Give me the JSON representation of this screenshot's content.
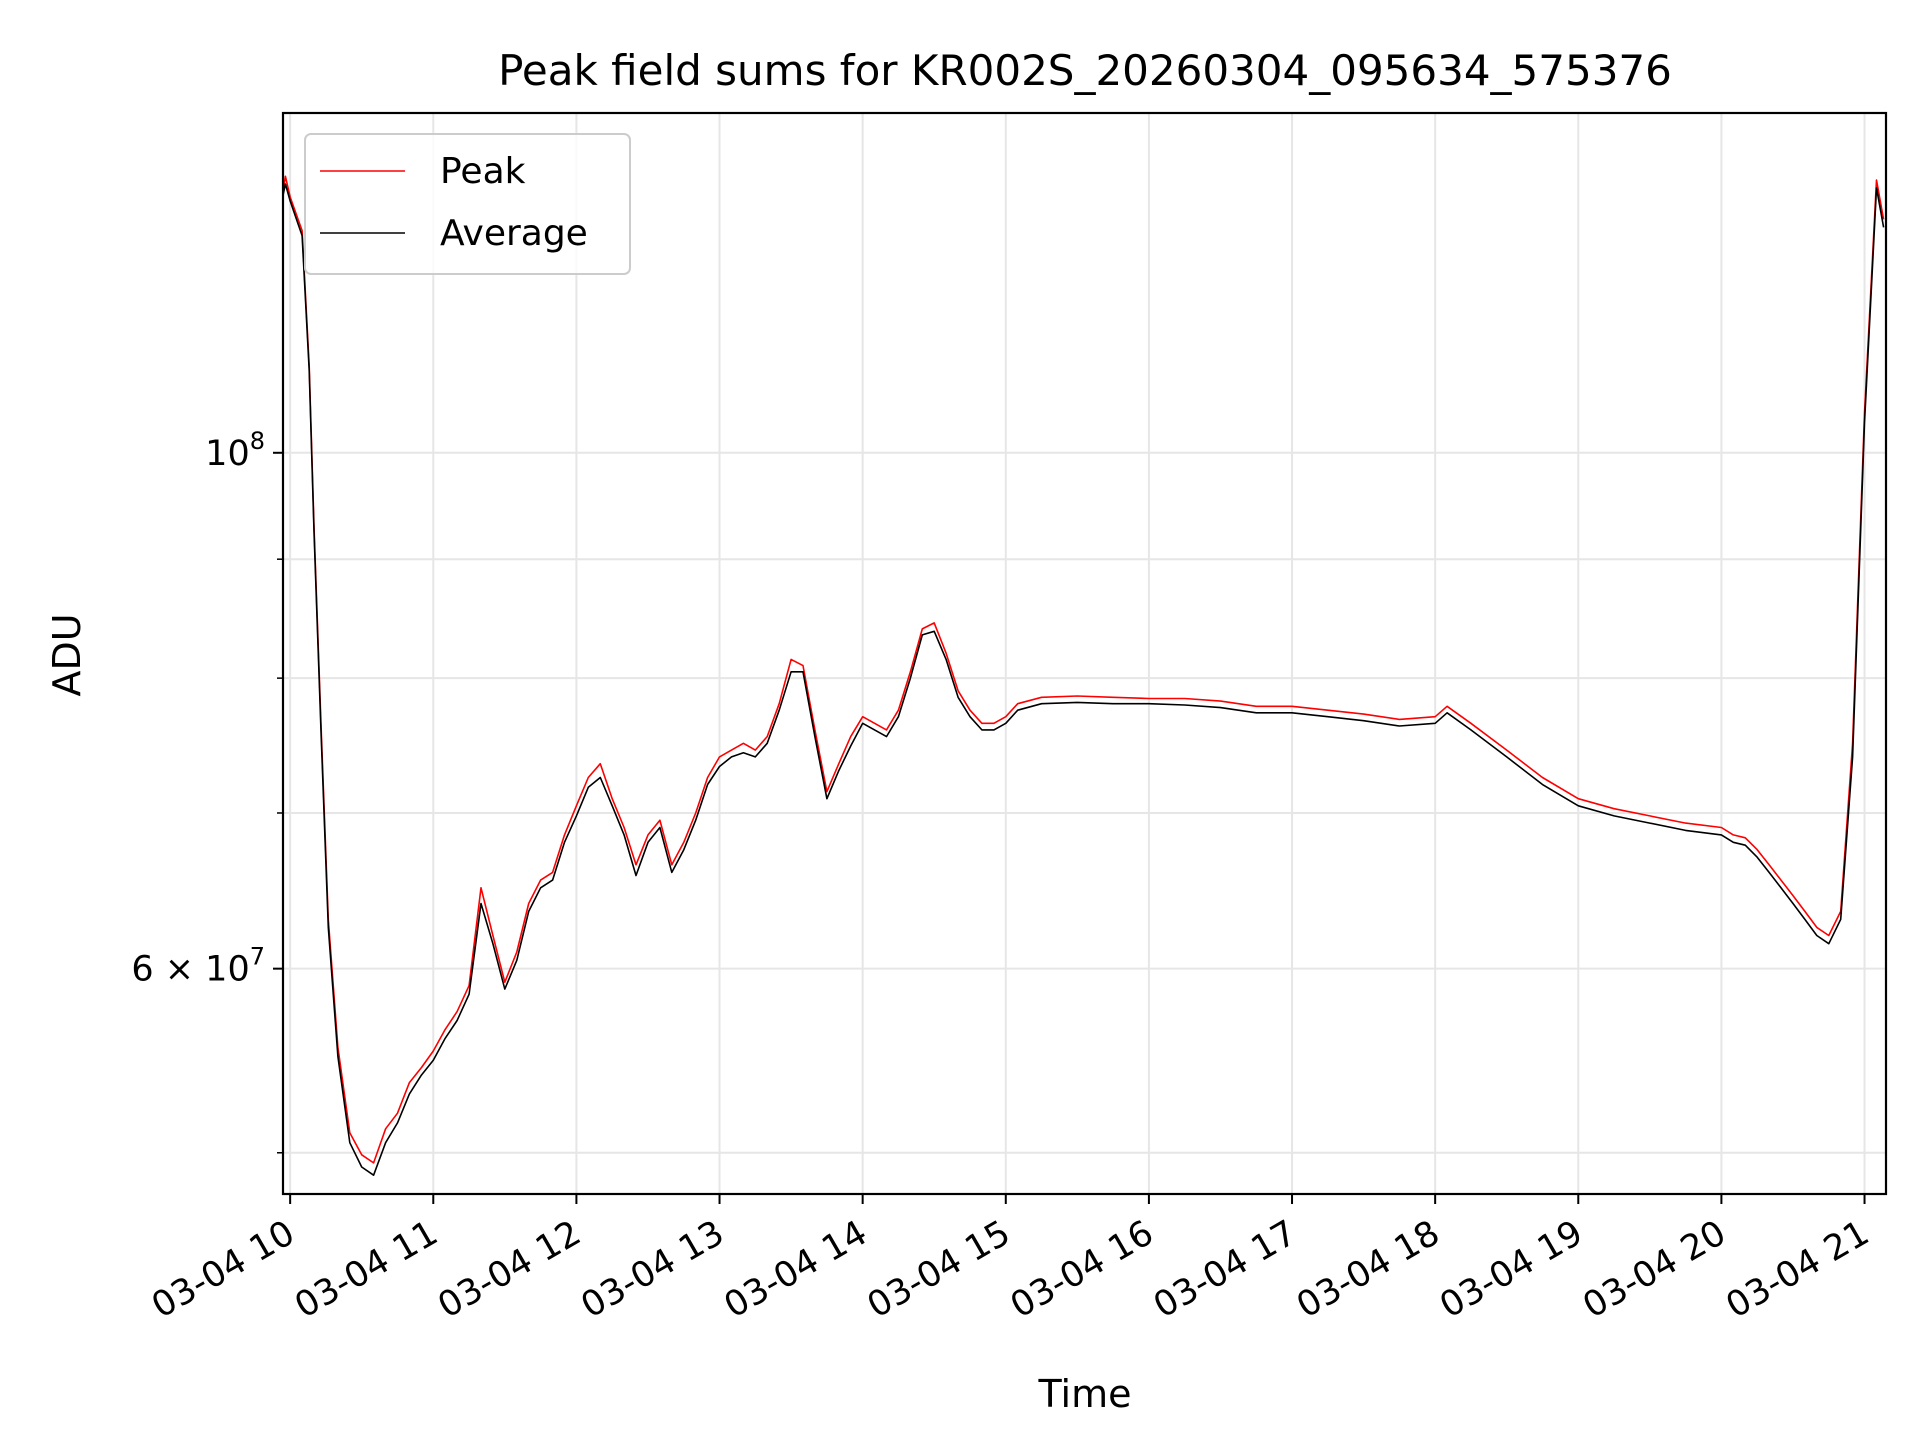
{
  "chart_data": {
    "type": "line",
    "title": "Peak field sums for KR002S_20260304_095634_575376",
    "xlabel": "Time",
    "ylabel": "ADU",
    "yscale": "log",
    "ylim": [
      48000000,
      140000000
    ],
    "xlim": [
      "2026-03-04 09:57",
      "2026-03-04 21:09"
    ],
    "x_ticks": [
      {
        "t": "2026-03-04 10:00",
        "label": "03-04 10"
      },
      {
        "t": "2026-03-04 11:00",
        "label": "03-04 11"
      },
      {
        "t": "2026-03-04 12:00",
        "label": "03-04 12"
      },
      {
        "t": "2026-03-04 13:00",
        "label": "03-04 13"
      },
      {
        "t": "2026-03-04 14:00",
        "label": "03-04 14"
      },
      {
        "t": "2026-03-04 15:00",
        "label": "03-04 15"
      },
      {
        "t": "2026-03-04 16:00",
        "label": "03-04 16"
      },
      {
        "t": "2026-03-04 17:00",
        "label": "03-04 17"
      },
      {
        "t": "2026-03-04 18:00",
        "label": "03-04 18"
      },
      {
        "t": "2026-03-04 19:00",
        "label": "03-04 19"
      },
      {
        "t": "2026-03-04 20:00",
        "label": "03-04 20"
      },
      {
        "t": "2026-03-04 21:00",
        "label": "03-04 21"
      }
    ],
    "y_ticks": [
      {
        "value": 60000000,
        "label": "6 × 10",
        "exp": "7"
      },
      {
        "value": 100000000,
        "label": "10",
        "exp": "8"
      }
    ],
    "y_minor_ticks": [
      50000000,
      70000000,
      80000000,
      90000000
    ],
    "grid": true,
    "legend_position": "upper-left",
    "series": [
      {
        "name": "Peak",
        "color": "#ff0000",
        "x": [
          "2026-03-04 09:57",
          "2026-03-04 09:58",
          "2026-03-04 10:00",
          "2026-03-04 10:05",
          "2026-03-04 10:08",
          "2026-03-04 10:10",
          "2026-03-04 10:13",
          "2026-03-04 10:16",
          "2026-03-04 10:20",
          "2026-03-04 10:25",
          "2026-03-04 10:30",
          "2026-03-04 10:35",
          "2026-03-04 10:40",
          "2026-03-04 10:45",
          "2026-03-04 10:50",
          "2026-03-04 10:55",
          "2026-03-04 11:00",
          "2026-03-04 11:05",
          "2026-03-04 11:10",
          "2026-03-04 11:15",
          "2026-03-04 11:20",
          "2026-03-04 11:25",
          "2026-03-04 11:30",
          "2026-03-04 11:35",
          "2026-03-04 11:40",
          "2026-03-04 11:45",
          "2026-03-04 11:50",
          "2026-03-04 11:55",
          "2026-03-04 12:00",
          "2026-03-04 12:05",
          "2026-03-04 12:10",
          "2026-03-04 12:15",
          "2026-03-04 12:20",
          "2026-03-04 12:25",
          "2026-03-04 12:30",
          "2026-03-04 12:35",
          "2026-03-04 12:40",
          "2026-03-04 12:45",
          "2026-03-04 12:50",
          "2026-03-04 12:55",
          "2026-03-04 13:00",
          "2026-03-04 13:05",
          "2026-03-04 13:10",
          "2026-03-04 13:15",
          "2026-03-04 13:20",
          "2026-03-04 13:25",
          "2026-03-04 13:30",
          "2026-03-04 13:35",
          "2026-03-04 13:40",
          "2026-03-04 13:45",
          "2026-03-04 13:50",
          "2026-03-04 13:55",
          "2026-03-04 14:00",
          "2026-03-04 14:05",
          "2026-03-04 14:10",
          "2026-03-04 14:15",
          "2026-03-04 14:20",
          "2026-03-04 14:25",
          "2026-03-04 14:30",
          "2026-03-04 14:35",
          "2026-03-04 14:40",
          "2026-03-04 14:45",
          "2026-03-04 14:50",
          "2026-03-04 14:55",
          "2026-03-04 15:00",
          "2026-03-04 15:05",
          "2026-03-04 15:15",
          "2026-03-04 15:30",
          "2026-03-04 15:45",
          "2026-03-04 16:00",
          "2026-03-04 16:15",
          "2026-03-04 16:30",
          "2026-03-04 16:45",
          "2026-03-04 17:00",
          "2026-03-04 17:15",
          "2026-03-04 17:30",
          "2026-03-04 17:45",
          "2026-03-04 18:00",
          "2026-03-04 18:05",
          "2026-03-04 18:15",
          "2026-03-04 18:30",
          "2026-03-04 18:45",
          "2026-03-04 19:00",
          "2026-03-04 19:15",
          "2026-03-04 19:30",
          "2026-03-04 19:45",
          "2026-03-04 20:00",
          "2026-03-04 20:05",
          "2026-03-04 20:10",
          "2026-03-04 20:15",
          "2026-03-04 20:20",
          "2026-03-04 20:25",
          "2026-03-04 20:30",
          "2026-03-04 20:35",
          "2026-03-04 20:40",
          "2026-03-04 20:45",
          "2026-03-04 20:50",
          "2026-03-04 20:55",
          "2026-03-04 21:00",
          "2026-03-04 21:05",
          "2026-03-04 21:08"
        ],
        "y": [
          129500000,
          131500000,
          128800000,
          124600000,
          109000000,
          93000000,
          76000000,
          63000000,
          55500000,
          51000000,
          49900000,
          49500000,
          51200000,
          52000000,
          53600000,
          54400000,
          55300000,
          56500000,
          57500000,
          59000000,
          65000000,
          62000000,
          59200000,
          61000000,
          64000000,
          65500000,
          66000000,
          68500000,
          70500000,
          72500000,
          73500000,
          71000000,
          69000000,
          66500000,
          68500000,
          69500000,
          66500000,
          68000000,
          70000000,
          72500000,
          74000000,
          74500000,
          75000000,
          74500000,
          75500000,
          78000000,
          81500000,
          81000000,
          76000000,
          71500000,
          73500000,
          75500000,
          77000000,
          76500000,
          76000000,
          77500000,
          80500000,
          84000000,
          84500000,
          82000000,
          79000000,
          77500000,
          76500000,
          76500000,
          77000000,
          78000000,
          78500000,
          78600000,
          78500000,
          78400000,
          78400000,
          78200000,
          77800000,
          77800000,
          77500000,
          77200000,
          76800000,
          77000000,
          77800000,
          76500000,
          74500000,
          72500000,
          71000000,
          70300000,
          69800000,
          69300000,
          69000000,
          68500000,
          68300000,
          67500000,
          66500000,
          65500000,
          64500000,
          63500000,
          62500000,
          62000000,
          63500000,
          75000000,
          104000000,
          131000000,
          126000000
        ]
      },
      {
        "name": "Average",
        "color": "#000000",
        "x": [
          "2026-03-04 09:57",
          "2026-03-04 09:58",
          "2026-03-04 10:00",
          "2026-03-04 10:05",
          "2026-03-04 10:08",
          "2026-03-04 10:10",
          "2026-03-04 10:13",
          "2026-03-04 10:16",
          "2026-03-04 10:20",
          "2026-03-04 10:25",
          "2026-03-04 10:30",
          "2026-03-04 10:35",
          "2026-03-04 10:40",
          "2026-03-04 10:45",
          "2026-03-04 10:50",
          "2026-03-04 10:55",
          "2026-03-04 11:00",
          "2026-03-04 11:05",
          "2026-03-04 11:10",
          "2026-03-04 11:15",
          "2026-03-04 11:20",
          "2026-03-04 11:25",
          "2026-03-04 11:30",
          "2026-03-04 11:35",
          "2026-03-04 11:40",
          "2026-03-04 11:45",
          "2026-03-04 11:50",
          "2026-03-04 11:55",
          "2026-03-04 12:00",
          "2026-03-04 12:05",
          "2026-03-04 12:10",
          "2026-03-04 12:15",
          "2026-03-04 12:20",
          "2026-03-04 12:25",
          "2026-03-04 12:30",
          "2026-03-04 12:35",
          "2026-03-04 12:40",
          "2026-03-04 12:45",
          "2026-03-04 12:50",
          "2026-03-04 12:55",
          "2026-03-04 13:00",
          "2026-03-04 13:05",
          "2026-03-04 13:10",
          "2026-03-04 13:15",
          "2026-03-04 13:20",
          "2026-03-04 13:25",
          "2026-03-04 13:30",
          "2026-03-04 13:35",
          "2026-03-04 13:40",
          "2026-03-04 13:45",
          "2026-03-04 13:50",
          "2026-03-04 13:55",
          "2026-03-04 14:00",
          "2026-03-04 14:05",
          "2026-03-04 14:10",
          "2026-03-04 14:15",
          "2026-03-04 14:20",
          "2026-03-04 14:25",
          "2026-03-04 14:30",
          "2026-03-04 14:35",
          "2026-03-04 14:40",
          "2026-03-04 14:45",
          "2026-03-04 14:50",
          "2026-03-04 14:55",
          "2026-03-04 15:00",
          "2026-03-04 15:05",
          "2026-03-04 15:15",
          "2026-03-04 15:30",
          "2026-03-04 15:45",
          "2026-03-04 16:00",
          "2026-03-04 16:15",
          "2026-03-04 16:30",
          "2026-03-04 16:45",
          "2026-03-04 17:00",
          "2026-03-04 17:15",
          "2026-03-04 17:30",
          "2026-03-04 17:45",
          "2026-03-04 18:00",
          "2026-03-04 18:05",
          "2026-03-04 18:15",
          "2026-03-04 18:30",
          "2026-03-04 18:45",
          "2026-03-04 19:00",
          "2026-03-04 19:15",
          "2026-03-04 19:30",
          "2026-03-04 19:45",
          "2026-03-04 20:00",
          "2026-03-04 20:05",
          "2026-03-04 20:10",
          "2026-03-04 20:15",
          "2026-03-04 20:20",
          "2026-03-04 20:25",
          "2026-03-04 20:30",
          "2026-03-04 20:35",
          "2026-03-04 20:40",
          "2026-03-04 20:45",
          "2026-03-04 20:50",
          "2026-03-04 20:55",
          "2026-03-04 21:00",
          "2026-03-04 21:05",
          "2026-03-04 21:08"
        ],
        "y": [
          129000000,
          130500000,
          128300000,
          124000000,
          108500000,
          92500000,
          75500000,
          62500000,
          55000000,
          50500000,
          49300000,
          48900000,
          50500000,
          51500000,
          53000000,
          54000000,
          54800000,
          56000000,
          57000000,
          58500000,
          64000000,
          61500000,
          58800000,
          60500000,
          63500000,
          65000000,
          65500000,
          68000000,
          69800000,
          71800000,
          72500000,
          70500000,
          68500000,
          65800000,
          68000000,
          69000000,
          66000000,
          67500000,
          69500000,
          72000000,
          73300000,
          74000000,
          74300000,
          74000000,
          75000000,
          77500000,
          80500000,
          80500000,
          75500000,
          71000000,
          73000000,
          74800000,
          76500000,
          76000000,
          75500000,
          77000000,
          80000000,
          83500000,
          83800000,
          81500000,
          78500000,
          77000000,
          76000000,
          76000000,
          76500000,
          77500000,
          78000000,
          78100000,
          78000000,
          78000000,
          77900000,
          77700000,
          77300000,
          77300000,
          77000000,
          76700000,
          76300000,
          76500000,
          77300000,
          76000000,
          74000000,
          72000000,
          70500000,
          69800000,
          69300000,
          68800000,
          68500000,
          68000000,
          67800000,
          67000000,
          66000000,
          65000000,
          64000000,
          63000000,
          62000000,
          61500000,
          63000000,
          74000000,
          103000000,
          130000000,
          125000000
        ]
      }
    ]
  }
}
